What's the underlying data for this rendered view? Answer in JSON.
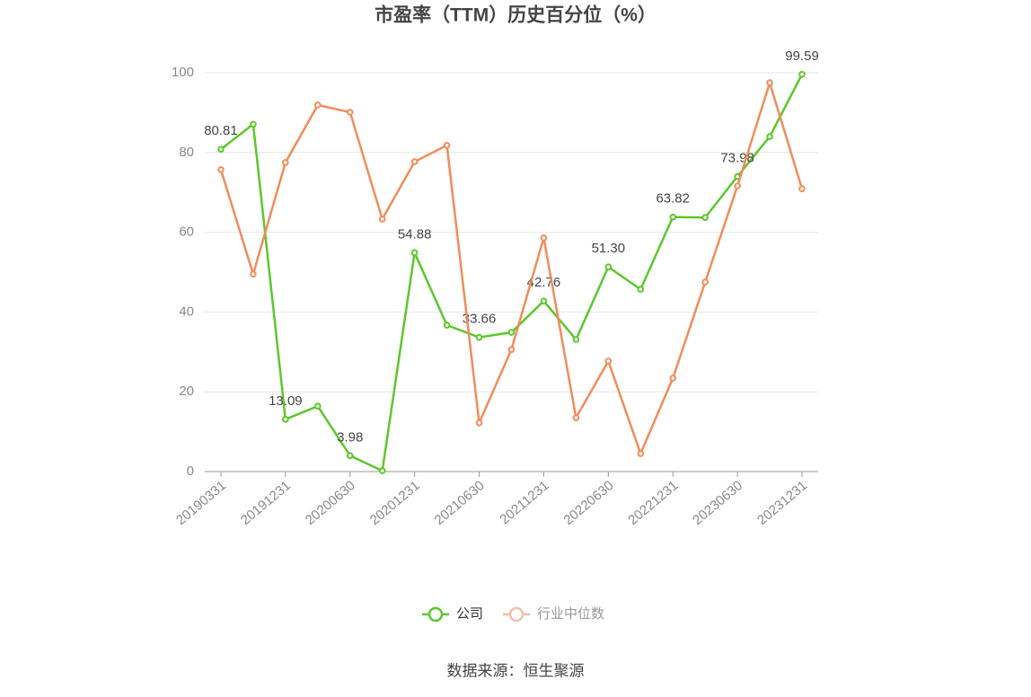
{
  "chart_data": {
    "type": "line",
    "title": "市盈率（TTM）历史百分位（%）",
    "categories": [
      "20190331",
      null,
      "20191231",
      null,
      "20200630",
      null,
      "20201231",
      null,
      "20210630",
      null,
      "20211231",
      null,
      "20220630",
      null,
      "20221231",
      null,
      "20230630",
      null,
      "20231231"
    ],
    "series": [
      {
        "name": "公司",
        "color": "#5cc72b",
        "values": [
          80.81,
          87.1,
          13.09,
          16.4,
          3.98,
          0.2,
          54.88,
          36.7,
          33.66,
          34.9,
          42.76,
          33.1,
          51.3,
          45.7,
          63.82,
          63.7,
          73.98,
          84.0,
          99.59
        ],
        "value_labels": [
          "80.81",
          null,
          "13.09",
          null,
          "3.98",
          null,
          "54.88",
          null,
          "33.66",
          null,
          "42.76",
          null,
          "51.30",
          null,
          "63.82",
          null,
          "73.98",
          null,
          "99.59"
        ]
      },
      {
        "name": "行业中位数",
        "color": "#f08c5a",
        "values": [
          75.7,
          49.5,
          77.5,
          91.9,
          90.1,
          63.3,
          77.7,
          81.8,
          12.2,
          30.6,
          58.6,
          13.5,
          27.7,
          4.5,
          23.4,
          47.5,
          71.6,
          97.5,
          70.9
        ]
      }
    ],
    "ylim": [
      0,
      100
    ],
    "yticks": [
      0,
      20,
      40,
      60,
      80,
      100
    ],
    "grid": true,
    "legend": "bottom",
    "source": "数据来源：恒生聚源"
  }
}
